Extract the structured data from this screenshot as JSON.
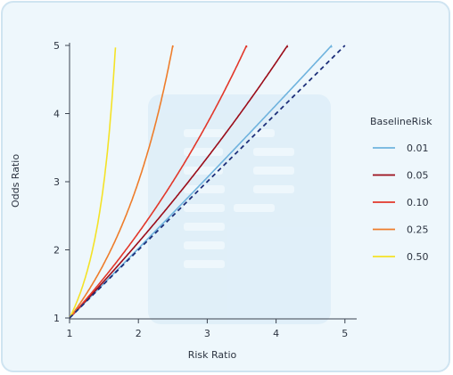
{
  "chart_data": {
    "type": "line",
    "xlabel": "Risk Ratio",
    "ylabel": "Odds Ratio",
    "xlim": [
      1,
      5.05
    ],
    "ylim": [
      1,
      5
    ],
    "x_ticks": [
      "1",
      "2",
      "3",
      "4",
      "5"
    ],
    "y_ticks": [
      "1",
      "2",
      "3",
      "4",
      "5"
    ],
    "legend_title": "BaselineRisk",
    "legend_position": "right",
    "grid": false,
    "series": [
      {
        "name": "0.01",
        "baseline": 0.01,
        "color": "#6fb3de"
      },
      {
        "name": "0.05",
        "baseline": 0.05,
        "color": "#9b0d1a"
      },
      {
        "name": "0.10",
        "baseline": 0.1,
        "color": "#e2372a"
      },
      {
        "name": "0.25",
        "baseline": 0.25,
        "color": "#ee7d2b"
      },
      {
        "name": "0.50",
        "baseline": 0.5,
        "color": "#f4e226"
      }
    ],
    "reference_line": {
      "x": [
        1,
        5.0
      ],
      "y": [
        1,
        5.0
      ],
      "color": "#1d2f7a",
      "style": "dashed"
    }
  }
}
